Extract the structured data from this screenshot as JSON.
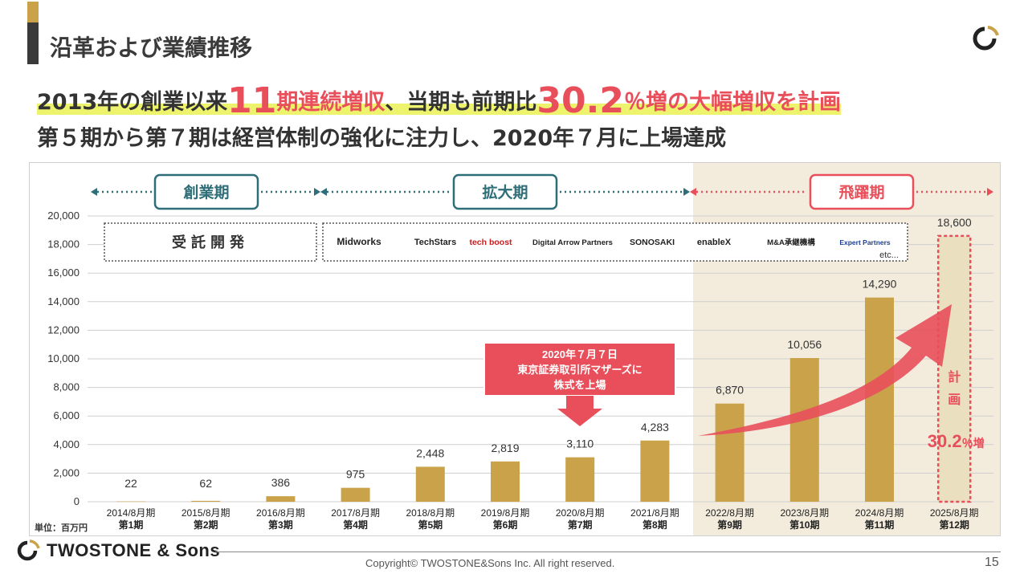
{
  "page": {
    "title": "沿革および業績推移",
    "headline1_part1": "2013年の創業以来",
    "headline1_big1": "11",
    "headline1_part2": "期連続増収",
    "headline1_part3": "、当期も前期比",
    "headline1_big2": "30.2",
    "headline1_part4": "％増の大幅増収を計画",
    "headline2": "第５期から第７期は経営体制の強化に注力し、2020年７月に上場達成",
    "unit_label": "単位：百万円",
    "company_name": "TWOSTONE & Sons",
    "copyright": "Copyright© TWOSTONE&Sons Inc. All right reserved.",
    "page_number": "15"
  },
  "phases": [
    {
      "label": "創業期",
      "color": "#2e6e78"
    },
    {
      "label": "拡大期",
      "color": "#2e6e78"
    },
    {
      "label": "飛躍期",
      "color": "#e84f5a"
    }
  ],
  "contract_dev_label": "受託開発",
  "services": [
    "Midworks",
    "TechStars",
    "tech boost",
    "Digital Arrow Partners",
    "SONOSAKI",
    "enableX",
    "M&A承継機構",
    "Expert Partners",
    "etc..."
  ],
  "listing_callout": {
    "line1": "2020年７月７日",
    "line2": "東京証券取引所マザーズに",
    "line3": "株式を上場"
  },
  "plan_label": {
    "char1": "計",
    "char2": "画",
    "growth_value": "30.2",
    "growth_unit": "％増"
  },
  "colors": {
    "bar": "#c9a24a",
    "accent_red": "#e84f5a",
    "teal": "#2e6e78",
    "highlight_bg": "#f3ecdc",
    "plan_fill": "#eadfbf"
  },
  "chart_data": {
    "type": "bar",
    "categories": [
      "2014/8月期",
      "2015/8月期",
      "2016/8月期",
      "2017/8月期",
      "2018/8月期",
      "2019/8月期",
      "2020/8月期",
      "2021/8月期",
      "2022/8月期",
      "2023/8月期",
      "2024/8月期",
      "2025/8月期"
    ],
    "periods": [
      "第1期",
      "第2期",
      "第3期",
      "第4期",
      "第5期",
      "第6期",
      "第7期",
      "第8期",
      "第9期",
      "第10期",
      "第11期",
      "第12期"
    ],
    "values": [
      22,
      62,
      386,
      975,
      2448,
      2819,
      3110,
      4283,
      6870,
      10056,
      14290,
      18600
    ],
    "value_labels": [
      "22",
      "62",
      "386",
      "975",
      "2,448",
      "2,819",
      "3,110",
      "4,283",
      "6,870",
      "10,056",
      "14,290",
      "18,600"
    ],
    "planned_index": 11,
    "ylim": [
      0,
      20000
    ],
    "yticks": [
      "0",
      "2,000",
      "4,000",
      "6,000",
      "8,000",
      "10,000",
      "12,000",
      "14,000",
      "16,000",
      "18,000",
      "20,000"
    ],
    "ytick_values": [
      0,
      2000,
      4000,
      6000,
      8000,
      10000,
      12000,
      14000,
      16000,
      18000,
      20000
    ],
    "grid": true
  }
}
